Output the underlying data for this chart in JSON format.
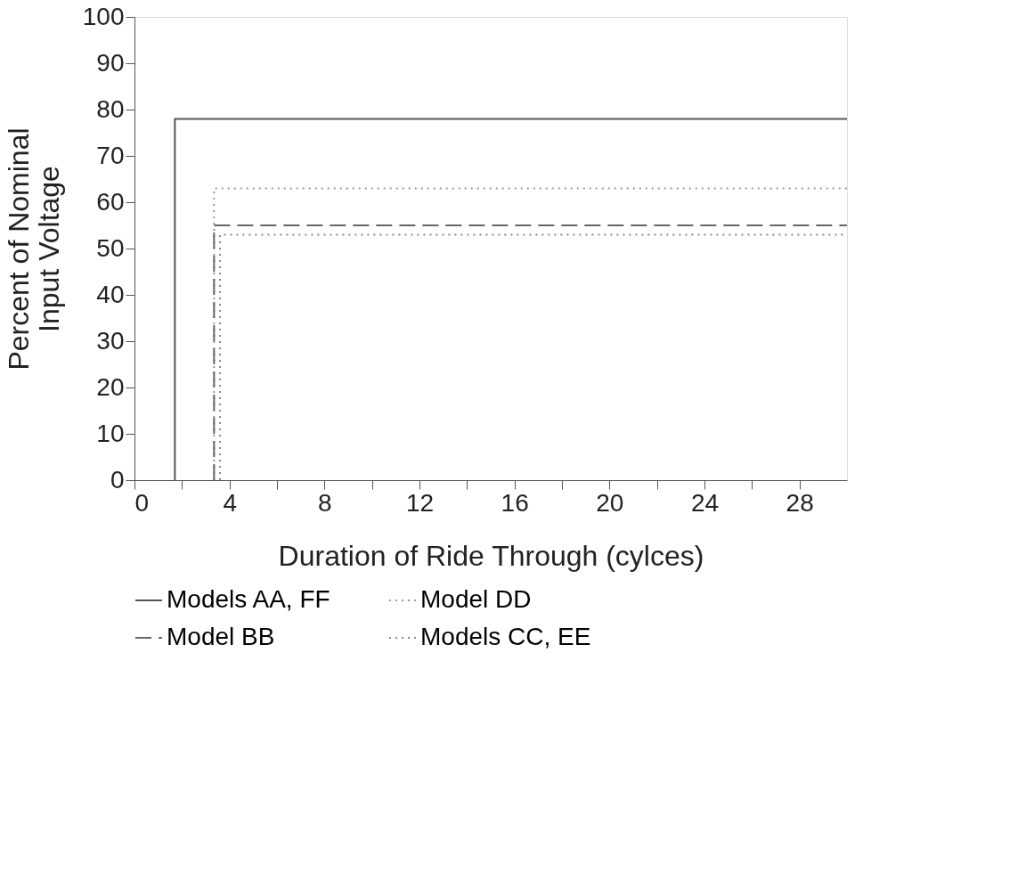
{
  "chart_data": {
    "type": "line",
    "xlabel": "Duration of Ride Through (cylces)",
    "ylabel": "Percent of Nominal\nInput Voltage",
    "xlim": [
      0,
      30
    ],
    "ylim": [
      0,
      100
    ],
    "xticks": [
      0,
      {
        "value": 2,
        "label": null
      },
      4,
      {
        "value": 6,
        "label": null
      },
      8,
      {
        "value": 10,
        "label": null
      },
      12,
      {
        "value": 14,
        "label": null
      },
      16,
      {
        "value": 18,
        "label": null
      },
      20,
      {
        "value": 22,
        "label": null
      },
      24,
      {
        "value": 26,
        "label": null
      },
      28
    ],
    "yticks": [
      0,
      10,
      20,
      30,
      40,
      50,
      60,
      70,
      80,
      90,
      100
    ],
    "grid": false,
    "legend": "bottom",
    "marker": "none",
    "series": [
      {
        "name": "Models AA, FF",
        "color": "#555555",
        "line_style": "solid",
        "x": [
          1.7,
          1.7,
          30
        ],
        "values": [
          0,
          78,
          78
        ]
      },
      {
        "name": "Model DD",
        "color": "#999999",
        "line_style": "dotted",
        "x": [
          3.35,
          3.35,
          30
        ],
        "values": [
          0,
          63,
          63
        ]
      },
      {
        "name": "Model BB",
        "color": "#666666",
        "line_style": "dashed",
        "x": [
          3.35,
          3.35,
          30
        ],
        "values": [
          0,
          55,
          55
        ]
      },
      {
        "name": "Models CC, EE",
        "color": "#888888",
        "line_style": "dotted",
        "x": [
          3.6,
          3.6,
          30
        ],
        "values": [
          0,
          53,
          53
        ]
      }
    ]
  }
}
